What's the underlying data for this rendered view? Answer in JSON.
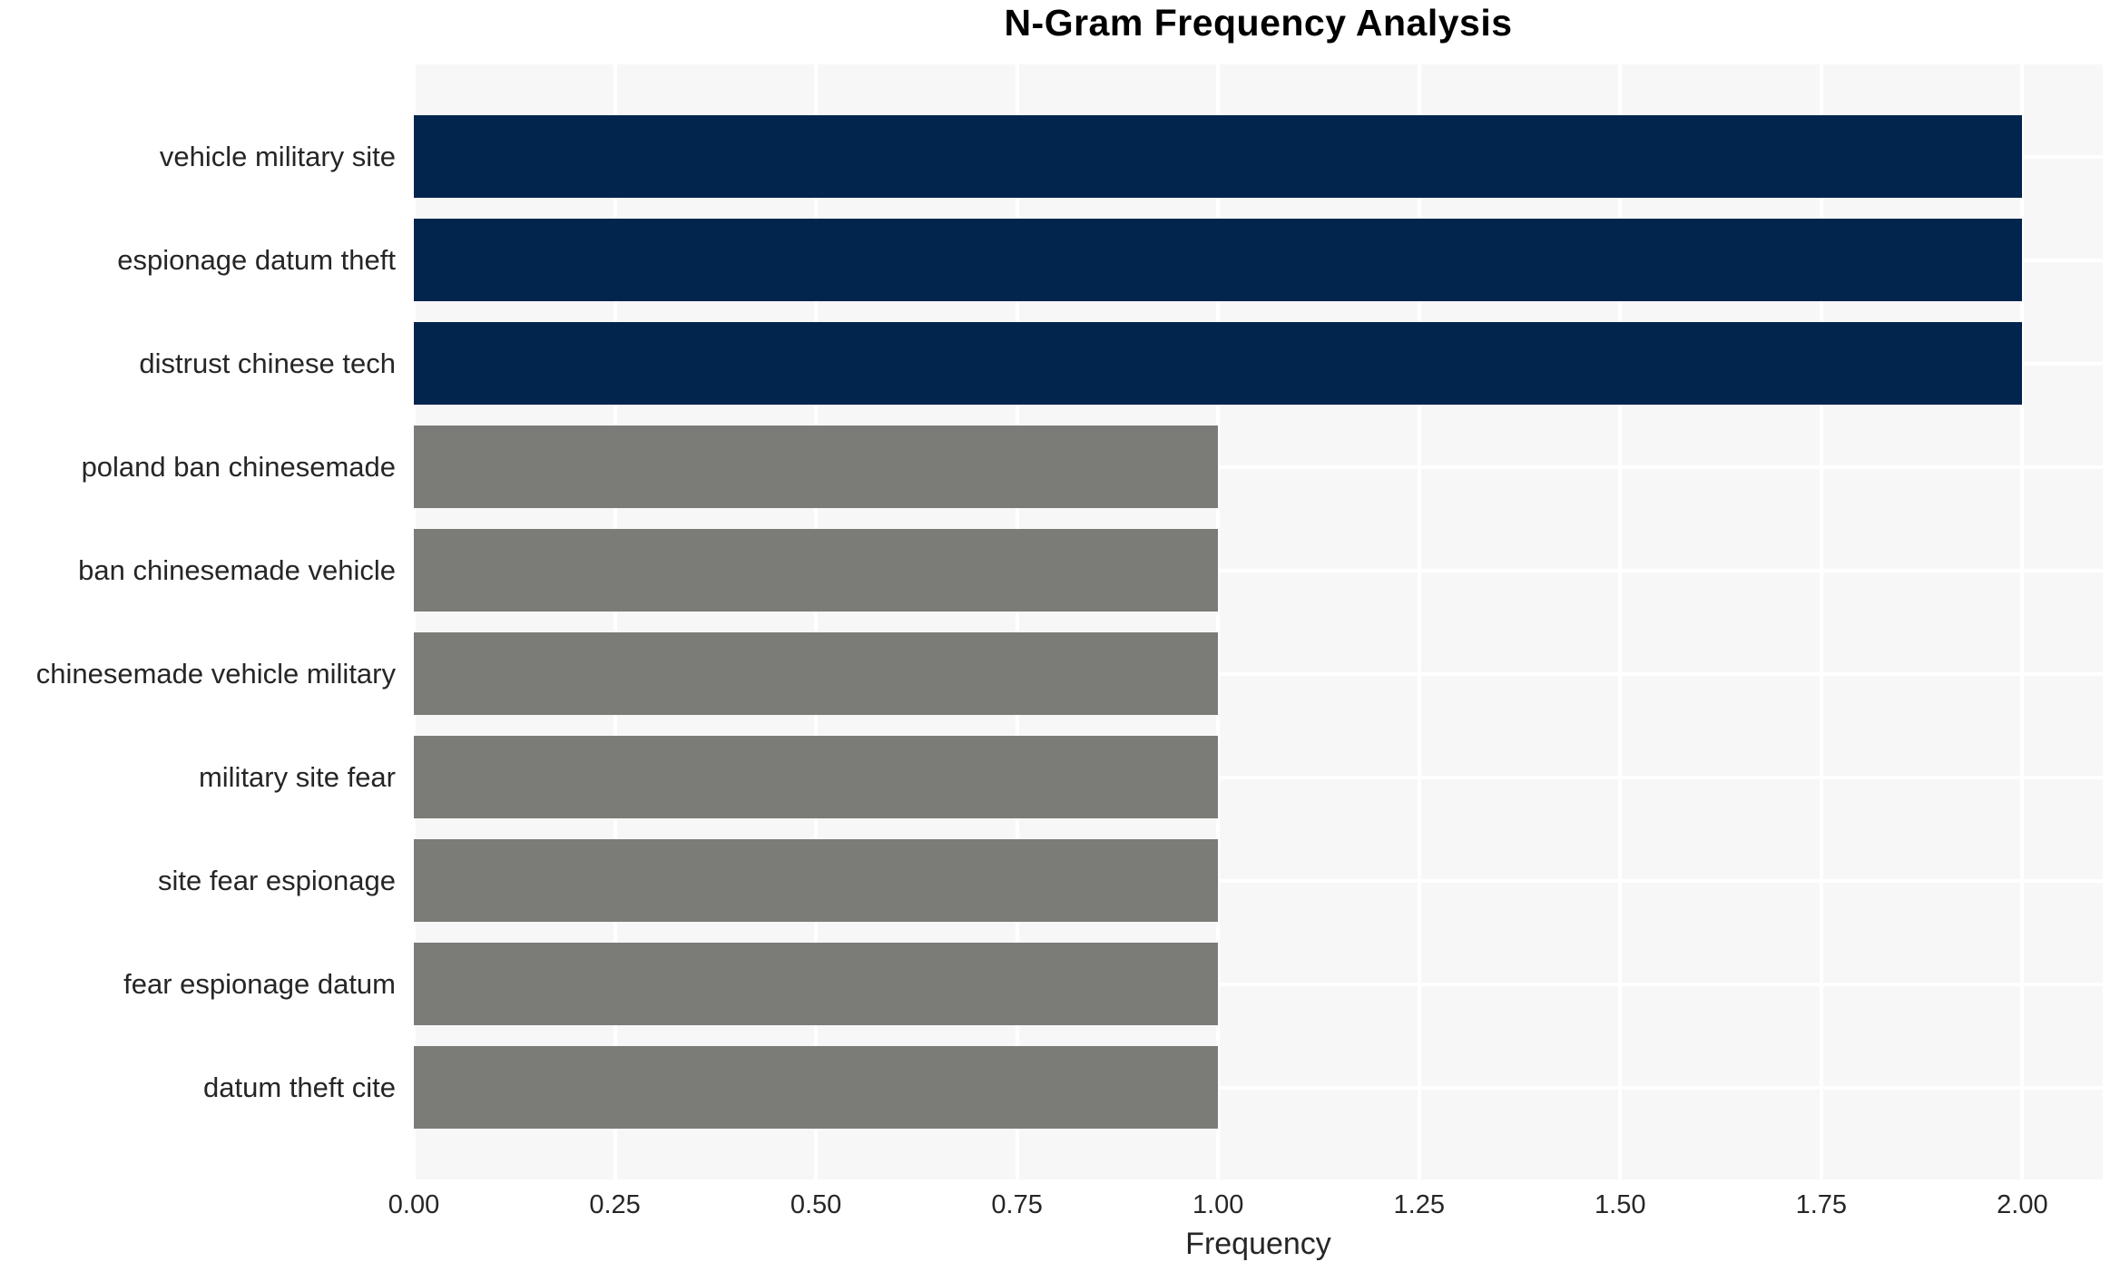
{
  "chart_data": {
    "type": "bar",
    "orientation": "horizontal",
    "title": "N-Gram Frequency Analysis",
    "xlabel": "Frequency",
    "ylabel": "",
    "categories": [
      "vehicle military site",
      "espionage datum theft",
      "distrust chinese tech",
      "poland ban chinesemade",
      "ban chinesemade vehicle",
      "chinesemade vehicle military",
      "military site fear",
      "site fear espionage",
      "fear espionage datum",
      "datum theft cite"
    ],
    "values": [
      2,
      2,
      2,
      1,
      1,
      1,
      1,
      1,
      1,
      1
    ],
    "bar_colors": [
      "#02254e",
      "#02254e",
      "#02254e",
      "#7b7b78",
      "#7b7b78",
      "#7b7b78",
      "#7b7b78",
      "#7b7b78",
      "#7b7b78",
      "#7b7b78"
    ],
    "xlim": [
      0,
      2.1
    ],
    "xticks": [
      0.0,
      0.25,
      0.5,
      0.75,
      1.0,
      1.25,
      1.5,
      1.75,
      2.0
    ],
    "xtick_labels": [
      "0.00",
      "0.25",
      "0.50",
      "0.75",
      "1.00",
      "1.25",
      "1.50",
      "1.75",
      "2.00"
    ],
    "grid": true,
    "legend": null,
    "colors": {
      "high_frequency_bar": "#02254e",
      "low_frequency_bar": "#7b7b78",
      "plot_background": "#f7f7f7",
      "grid_line": "#ffffff",
      "tick_text": "#262626",
      "title_text": "#000000"
    }
  }
}
